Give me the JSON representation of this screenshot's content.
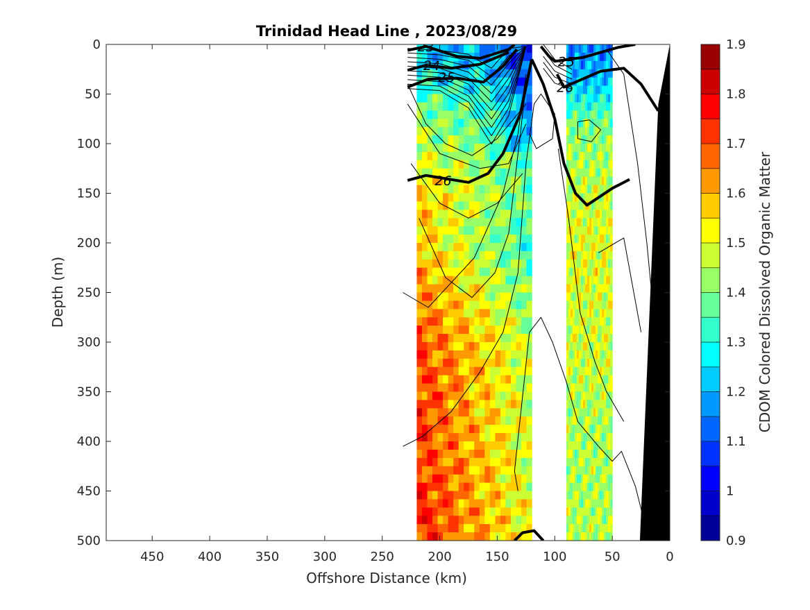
{
  "chart_data": {
    "type": "heatmap",
    "title": "Trinidad Head Line , 2023/08/29",
    "xlabel": "Offshore Distance (km)",
    "ylabel": "Depth (m)",
    "xlim": [
      490,
      0
    ],
    "ylim": [
      0,
      500
    ],
    "x_direction": "reversed",
    "y_direction": "reversed",
    "x_ticks": [
      450,
      400,
      350,
      300,
      250,
      200,
      150,
      100,
      50,
      0
    ],
    "y_ticks": [
      0,
      50,
      100,
      150,
      200,
      250,
      300,
      350,
      400,
      450,
      500
    ],
    "colorbar": {
      "label": "CDOM Colored Dissolved Organic Matter",
      "min": 0.9,
      "max": 1.9,
      "step": 0.05,
      "ticks": [
        0.9,
        1,
        1.1,
        1.2,
        1.3,
        1.4,
        1.5,
        1.6,
        1.7,
        1.8,
        1.9
      ],
      "tick_labels": [
        "0.9",
        "1",
        "1.1",
        "1.2",
        "1.3",
        "1.4",
        "1.5",
        "1.6",
        "1.7",
        "1.8",
        "1.9"
      ]
    },
    "data_blocks": [
      {
        "name": "offshore",
        "x_range": [
          220,
          120
        ],
        "profile": [
          [
            0,
            1.2
          ],
          [
            30,
            1.25
          ],
          [
            60,
            1.35
          ],
          [
            100,
            1.4
          ],
          [
            150,
            1.48
          ],
          [
            200,
            1.45
          ],
          [
            250,
            1.52
          ],
          [
            300,
            1.58
          ],
          [
            400,
            1.6
          ],
          [
            500,
            1.62
          ]
        ]
      },
      {
        "name": "nearshore",
        "x_range": [
          90,
          50
        ],
        "profile": [
          [
            0,
            1.15
          ],
          [
            40,
            1.22
          ],
          [
            80,
            1.4
          ],
          [
            150,
            1.47
          ],
          [
            200,
            1.5
          ],
          [
            300,
            1.48
          ],
          [
            400,
            1.44
          ],
          [
            500,
            1.45
          ]
        ]
      }
    ],
    "isopycnal_labels": [
      {
        "text": "23",
        "x": 212,
        "y": 2
      },
      {
        "text": "24",
        "x": 207,
        "y": 21
      },
      {
        "text": "25",
        "x": 194,
        "y": 33
      },
      {
        "text": "26",
        "x": 197,
        "y": 137
      },
      {
        "text": "25",
        "x": 90,
        "y": 17
      },
      {
        "text": "26",
        "x": 91,
        "y": 43
      }
    ],
    "bathymetry_color": "#000000",
    "colormap": "jet"
  }
}
